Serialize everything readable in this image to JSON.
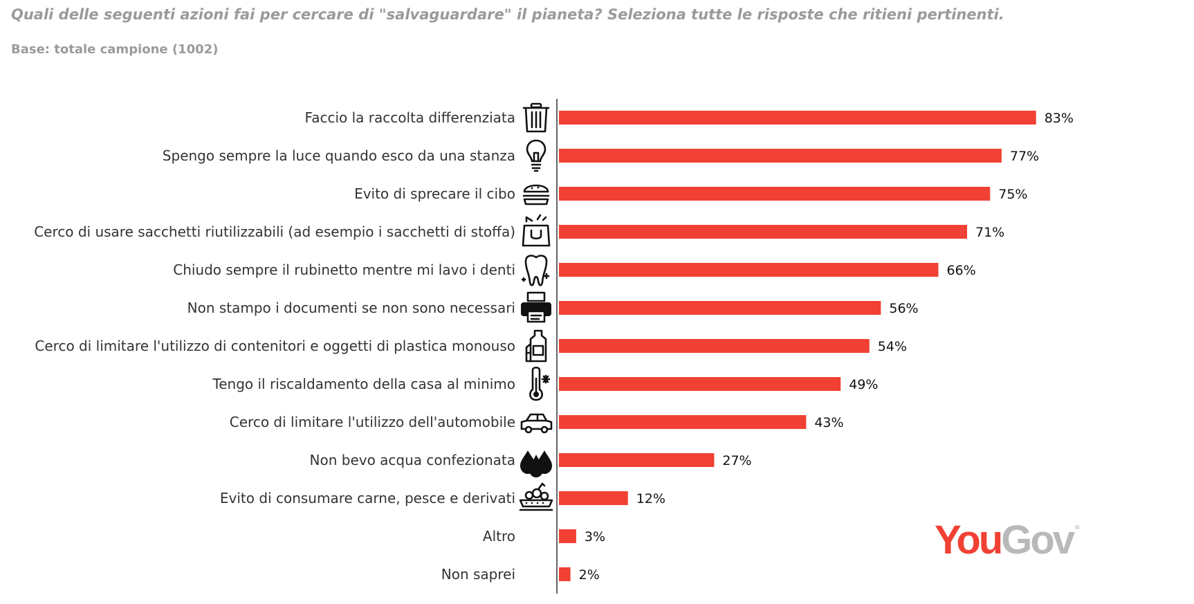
{
  "title": "Quali delle seguenti azioni fai per cercare di \"salvaguardare\" il pianeta? Seleziona tutte le risposte che ritieni pertinenti.",
  "subtitle": "Base: totale campione (1002)",
  "logo": {
    "you": "You",
    "gov": "Gov",
    "mark": "®"
  },
  "colors": {
    "bar": "#f04134",
    "axis": "#222222",
    "text": "#333333",
    "muted": "#9a9a9a"
  },
  "chart_data": {
    "type": "bar",
    "orientation": "horizontal",
    "unit": "%",
    "xlim": [
      0,
      100
    ],
    "grid": false,
    "legend": "none",
    "categories": [
      "Faccio la raccolta differenziata",
      "Spengo sempre la luce quando esco da una stanza",
      "Evito di sprecare il cibo",
      "Cerco di usare sacchetti riutilizzabili (ad esempio i sacchetti di stoffa)",
      "Chiudo sempre il rubinetto mentre mi lavo i denti",
      "Non stampo i documenti se non sono necessari",
      "Cerco di limitare l'utilizzo di contenitori e oggetti di plastica monouso",
      "Tengo il riscaldamento della casa al minimo",
      "Cerco di limitare l'utilizzo dell'automobile",
      "Non bevo acqua confezionata",
      "Evito di consumare carne, pesce e derivati",
      "Altro",
      "Non saprei"
    ],
    "values": [
      83,
      77,
      75,
      71,
      66,
      56,
      54,
      49,
      43,
      27,
      12,
      3,
      2
    ],
    "value_labels": [
      "83%",
      "77%",
      "75%",
      "71%",
      "66%",
      "56%",
      "54%",
      "49%",
      "43%",
      "27%",
      "12%",
      "3%",
      "2%"
    ],
    "icons": [
      "trash-icon",
      "lightbulb-icon",
      "burger-icon",
      "shopping-bag-icon",
      "tooth-icon",
      "printer-icon",
      "plastic-bottles-icon",
      "thermometer-icon",
      "car-icon",
      "water-drops-icon",
      "salad-bowl-icon",
      "",
      ""
    ]
  }
}
